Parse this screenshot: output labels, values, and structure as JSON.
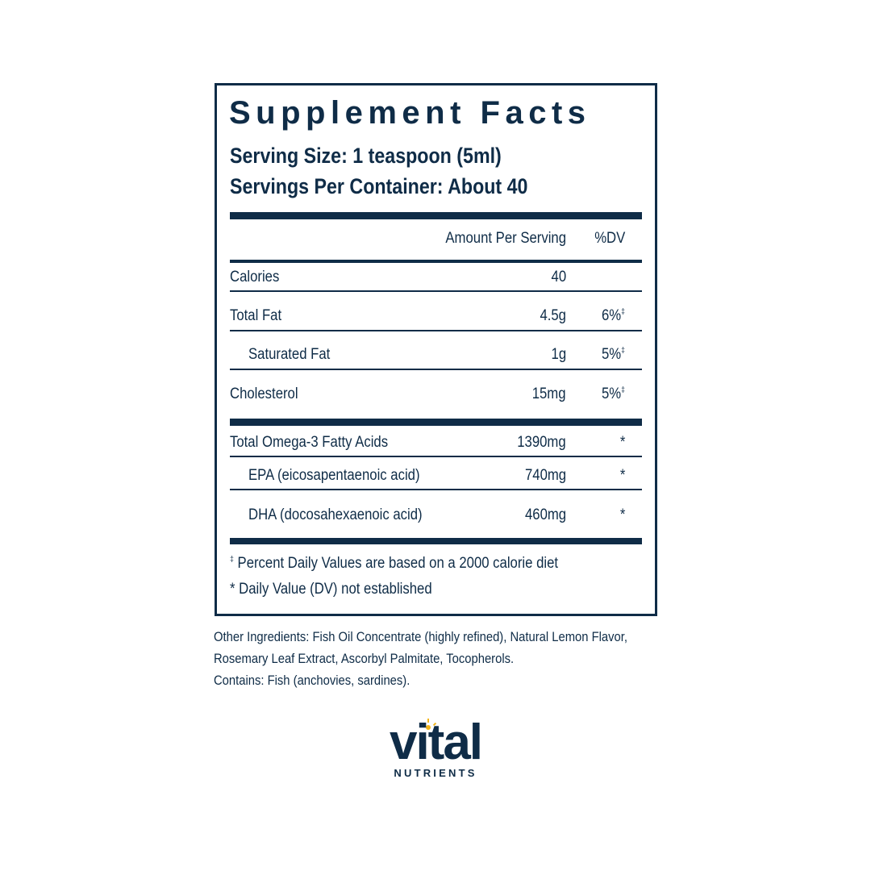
{
  "panel": {
    "title": "Supplement Facts",
    "serving_size": "Serving Size: 1 teaspoon (5ml)",
    "servings_per_container": "Servings Per Container: About 40",
    "header": {
      "amount": "Amount Per Serving",
      "dv": "%DV"
    },
    "rows": [
      {
        "name": "Calories",
        "amount": "40",
        "dv": null,
        "dv_symbol": null
      },
      {
        "name": "Total Fat",
        "amount": "4.5g",
        "dv": "6%",
        "dv_symbol": "‡"
      },
      {
        "name": "Saturated Fat",
        "amount": "1g",
        "dv": "5%",
        "dv_symbol": "‡"
      },
      {
        "name": "Cholesterol",
        "amount": "15mg",
        "dv": "5%",
        "dv_symbol": "‡"
      },
      {
        "name": "Total Omega-3 Fatty Acids",
        "amount": "1390mg",
        "dv": null,
        "dv_symbol": "*"
      },
      {
        "name": "EPA (eicosapentaenoic acid)",
        "amount": "740mg",
        "dv": null,
        "dv_symbol": "*"
      },
      {
        "name": "DHA (docosahexaenoic acid)",
        "amount": "460mg",
        "dv": null,
        "dv_symbol": "*"
      }
    ],
    "footnotes": [
      {
        "symbol": "‡",
        "text": "Percent Daily Values are based on a 2000 calorie diet"
      },
      {
        "symbol": "*",
        "text": "Daily Value (DV) not established"
      }
    ]
  },
  "other_ingredients": "Other Ingredients: Fish Oil Concentrate (highly refined), Natural Lemon Flavor, Rosemary Leaf Extract, Ascorbyl Palmitate, Tocopherols.",
  "contains": "Contains: Fish (anchovies, sardines).",
  "logo": {
    "name": "vital",
    "subtitle": "NUTRIENTS"
  }
}
